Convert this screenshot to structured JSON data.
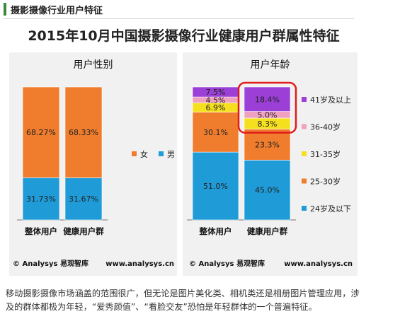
{
  "header": {
    "title": "摄影摄像行业用户特征"
  },
  "main_title": "2015年10月中国摄影摄像行业健康用户群属性特征",
  "chart_data": [
    {
      "type": "bar",
      "stacked": true,
      "title": "用户性别",
      "categories": [
        "整体用户",
        "健康用户群"
      ],
      "series": [
        {
          "name": "男",
          "values": [
            31.73,
            31.67
          ],
          "labels": [
            "31.73%",
            "31.67%"
          ],
          "color": "#1f9bd7"
        },
        {
          "name": "女",
          "values": [
            68.27,
            68.33
          ],
          "labels": [
            "68.27%",
            "68.33%"
          ],
          "color": "#f07d2d"
        }
      ],
      "legend": {
        "order": [
          "女",
          "男"
        ],
        "placement": "right"
      },
      "ylim": [
        0,
        100
      ],
      "credit_left": "© Analysys 易观智库",
      "credit_right": "www.analysys.cn"
    },
    {
      "type": "bar",
      "stacked": true,
      "title": "用户年龄",
      "categories": [
        "整体用户",
        "健康用户群"
      ],
      "series": [
        {
          "name": "24岁及以下",
          "values": [
            51.0,
            45.0
          ],
          "labels": [
            "51.0%",
            "45.0%"
          ],
          "color": "#1f9bd7"
        },
        {
          "name": "25-30岁",
          "values": [
            30.1,
            23.3
          ],
          "labels": [
            "30.1%",
            "23.3%"
          ],
          "color": "#f07d2d"
        },
        {
          "name": "31-35岁",
          "values": [
            6.9,
            8.3
          ],
          "labels": [
            "6.9%",
            "8.3%"
          ],
          "color": "#f5e020"
        },
        {
          "name": "36-40岁",
          "values": [
            4.5,
            5.0
          ],
          "labels": [
            "4.5%",
            "5.0%"
          ],
          "color": "#f0a0c0"
        },
        {
          "name": "41岁及以上",
          "values": [
            7.5,
            18.4
          ],
          "labels": [
            "7.5%",
            "18.4%"
          ],
          "color": "#9b3fd6"
        }
      ],
      "legend": {
        "order": [
          "41岁及以上",
          "36-40岁",
          "31-35岁",
          "25-30岁",
          "24岁及以下"
        ],
        "placement": "right"
      },
      "ylim": [
        0,
        100
      ],
      "highlight": {
        "category": "健康用户群",
        "series": [
          "41岁及以上",
          "36-40岁",
          "31-35岁"
        ],
        "color": "#e21b1b"
      },
      "credit_left": "© Analysys 易观智库",
      "credit_right": "www.analysys.cn"
    }
  ],
  "footer": {
    "line1": "移动摄影摄像市场涵盖的范围很广，但无论是图片美化类、相机类还是相册图片管理应用，涉",
    "line2": "及的群体都极为年轻，“爱秀颜值”、“看脸交友”恐怕是年轻群体的一个普遍特征。"
  }
}
